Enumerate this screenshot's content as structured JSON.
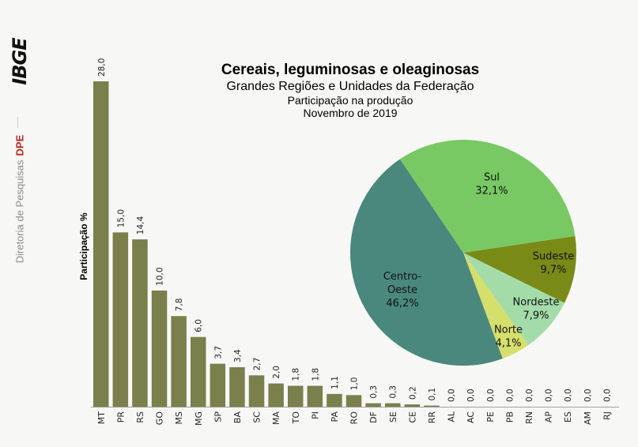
{
  "sidebar": {
    "logo": "IBGE",
    "department": "Diretoria de Pesquisas",
    "department_abbr": "DPE"
  },
  "colors": {
    "bar": "#7a7f4c",
    "background": "#f7f8f6",
    "brand_red": "#b9261d"
  },
  "chart_data": [
    {
      "type": "bar",
      "title": "Cereais, leguminosas e oleaginosas",
      "ylabel": "Participação %",
      "xlabel": "",
      "ylim": [
        0,
        28
      ],
      "grid": false,
      "categories": [
        "MT",
        "PR",
        "RS",
        "GO",
        "MS",
        "MG",
        "SP",
        "BA",
        "SC",
        "MA",
        "TO",
        "PI",
        "PA",
        "RO",
        "DF",
        "SE",
        "CE",
        "RR",
        "AL",
        "AC",
        "PE",
        "PB",
        "RN",
        "AP",
        "ES",
        "AM",
        "RJ"
      ],
      "values": [
        28.0,
        15.0,
        14.4,
        10.0,
        7.8,
        6.0,
        3.7,
        3.4,
        2.7,
        2.0,
        1.8,
        1.8,
        1.1,
        1.0,
        0.3,
        0.3,
        0.2,
        0.1,
        0.0,
        0.0,
        0.0,
        0.0,
        0.0,
        0.0,
        0.0,
        0.0,
        0.0
      ],
      "value_labels": [
        "28,0",
        "15,0",
        "14,4",
        "10,0",
        "7,8",
        "6,0",
        "3,7",
        "3,4",
        "2,7",
        "2,0",
        "1,8",
        "1,8",
        "1,1",
        "1,0",
        "0,3",
        "0,3",
        "0,2",
        "0,1",
        "0,0",
        "0,0",
        "0,0",
        "0,0",
        "0,0",
        "0,0",
        "0,0",
        "0,0",
        "0,0"
      ]
    },
    {
      "type": "pie",
      "title": "Cereais, leguminosas e oleaginosas",
      "subtitle": "Grandes Regiões e Unidades da Federação",
      "subtitle2": "Participação na produção",
      "subtitle3": "Novembro de 2019",
      "slices": [
        {
          "name": "Sudeste",
          "label_lines": [
            "Sudeste"
          ],
          "value": 9.7,
          "value_label": "9,7%",
          "color": "#7a8a17"
        },
        {
          "name": "Nordeste",
          "label_lines": [
            "Nordeste"
          ],
          "value": 7.9,
          "value_label": "7,9%",
          "color": "#a3dca9"
        },
        {
          "name": "Norte",
          "label_lines": [
            "Norte"
          ],
          "value": 4.1,
          "value_label": "4,1%",
          "color": "#d5df6b"
        },
        {
          "name": "Centro-Oeste",
          "label_lines": [
            "Centro-",
            "Oeste"
          ],
          "value": 46.2,
          "value_label": "46,2%",
          "color": "#4a887d"
        },
        {
          "name": "Sul",
          "label_lines": [
            "Sul"
          ],
          "value": 32.1,
          "value_label": "32,1%",
          "color": "#78c963"
        }
      ]
    }
  ]
}
